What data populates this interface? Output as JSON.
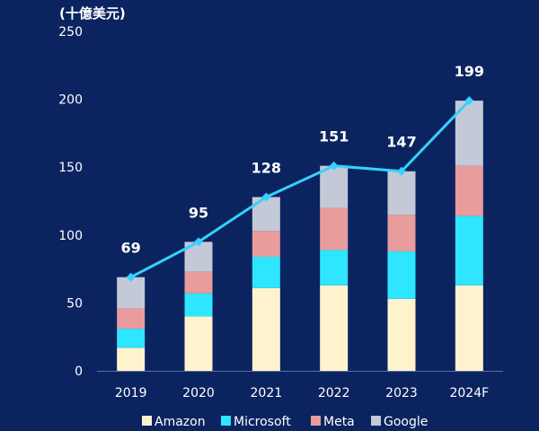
{
  "chart_data": {
    "type": "bar",
    "stacked": true,
    "unit_label": "(十億美元)",
    "categories": [
      "2019",
      "2020",
      "2021",
      "2022",
      "2023",
      "2024F"
    ],
    "ylim": [
      0,
      250
    ],
    "yticks": [
      "0",
      "50",
      "100",
      "150",
      "200",
      "250"
    ],
    "grid": false,
    "legend_position": "bottom",
    "series": [
      {
        "name": "Amazon",
        "color": "#fff3cd",
        "values": [
          17,
          40,
          61,
          63,
          53,
          63
        ]
      },
      {
        "name": "Microsoft",
        "color": "#2ee6ff",
        "values": [
          14,
          17,
          23,
          26,
          35,
          51
        ]
      },
      {
        "name": "Meta",
        "color": "#e89c9c",
        "values": [
          15,
          16,
          19,
          31,
          27,
          37
        ]
      },
      {
        "name": "Google",
        "color": "#c3c9d6",
        "values": [
          23,
          22,
          25,
          31,
          32,
          48
        ]
      }
    ],
    "total_line": {
      "color": "#35d1ff",
      "values": [
        69,
        95,
        128,
        151,
        147,
        199
      ],
      "labels": [
        "69",
        "95",
        "128",
        "151",
        "147",
        "199"
      ]
    }
  }
}
